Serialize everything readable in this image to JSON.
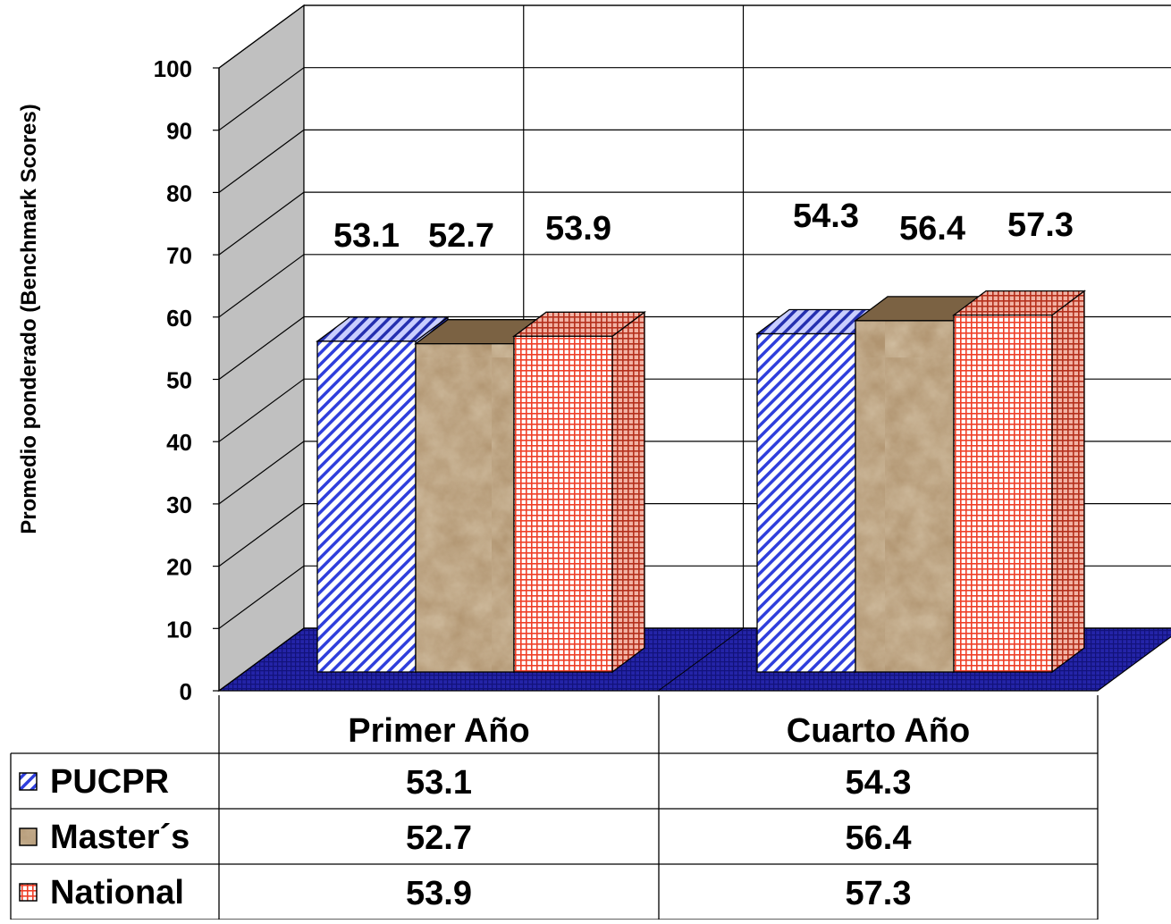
{
  "chart_data": {
    "type": "bar",
    "title": "",
    "ylabel": "Promedio ponderado (Benchmark Scores)",
    "xlabel": "",
    "ylim": [
      0,
      100
    ],
    "yticks": [
      0,
      10,
      20,
      30,
      40,
      50,
      60,
      70,
      80,
      90,
      100
    ],
    "grid": true,
    "three_d": true,
    "categories": [
      "Primer Año",
      "Cuarto Año"
    ],
    "series": [
      {
        "name": "PUCPR",
        "values": [
          53.1,
          54.3
        ],
        "pattern": "diagonal-stripes",
        "color": "#3344dd"
      },
      {
        "name": "Master´s",
        "values": [
          52.7,
          56.4
        ],
        "pattern": "crumpled-paper",
        "color": "#a88a62"
      },
      {
        "name": "National",
        "values": [
          53.9,
          57.3
        ],
        "pattern": "grid",
        "color": "#e8402a"
      }
    ],
    "data_labels": [
      [
        "53.1",
        "52.7",
        "53.9"
      ],
      [
        "54.3",
        "56.4",
        "57.3"
      ]
    ],
    "data_table": true,
    "floor_color": "#22229a",
    "wall_color": "#c0c0c0"
  }
}
